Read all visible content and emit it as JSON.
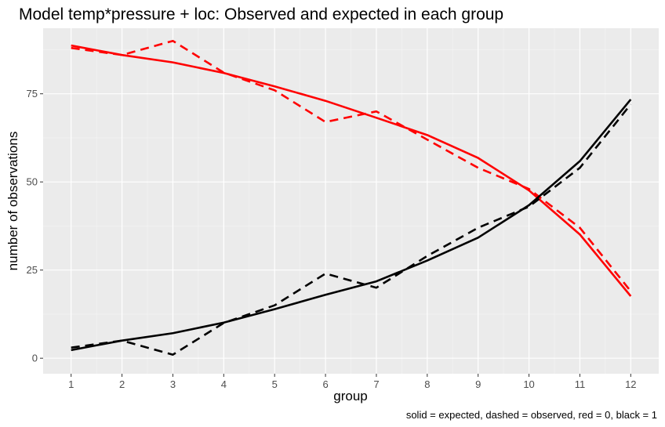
{
  "chart_data": {
    "type": "line",
    "title": "Model temp*pressure + loc: Observed and expected in each group",
    "xlabel": "group",
    "ylabel": "number of observations",
    "caption": "solid = expected, dashed = observed, red = 0, black = 1",
    "x": [
      1,
      2,
      3,
      4,
      5,
      6,
      7,
      8,
      9,
      10,
      11,
      12
    ],
    "x_ticks": [
      "1",
      "2",
      "3",
      "4",
      "5",
      "6",
      "7",
      "8",
      "9",
      "10",
      "11",
      "12"
    ],
    "y_ticks": [
      "0",
      "25",
      "50",
      "75"
    ],
    "xlim": [
      0.45,
      12.55
    ],
    "ylim": [
      -4.4,
      93.6
    ],
    "grid": true,
    "legend": "none",
    "series": [
      {
        "key": "expected_0",
        "color": "#ff0000",
        "dash": "solid",
        "values": [
          88.7,
          86.0,
          83.9,
          80.9,
          77.1,
          73.0,
          68.2,
          63.3,
          56.8,
          47.6,
          35.1,
          17.6
        ]
      },
      {
        "key": "observed_0",
        "color": "#ff0000",
        "dash": "dashed",
        "values": [
          88.0,
          86.0,
          90.0,
          81.0,
          76.0,
          67.0,
          70.0,
          62.0,
          54.0,
          48.0,
          37.0,
          19.0
        ]
      },
      {
        "key": "expected_1",
        "color": "#000000",
        "dash": "solid",
        "values": [
          2.3,
          5.0,
          7.1,
          10.1,
          13.9,
          18.0,
          21.8,
          27.7,
          34.2,
          43.4,
          55.9,
          73.4
        ]
      },
      {
        "key": "observed_1",
        "color": "#000000",
        "dash": "dashed",
        "values": [
          3.0,
          5.0,
          1.0,
          10.0,
          15.0,
          24.0,
          20.0,
          29.0,
          37.0,
          43.0,
          54.0,
          72.0
        ]
      }
    ]
  }
}
